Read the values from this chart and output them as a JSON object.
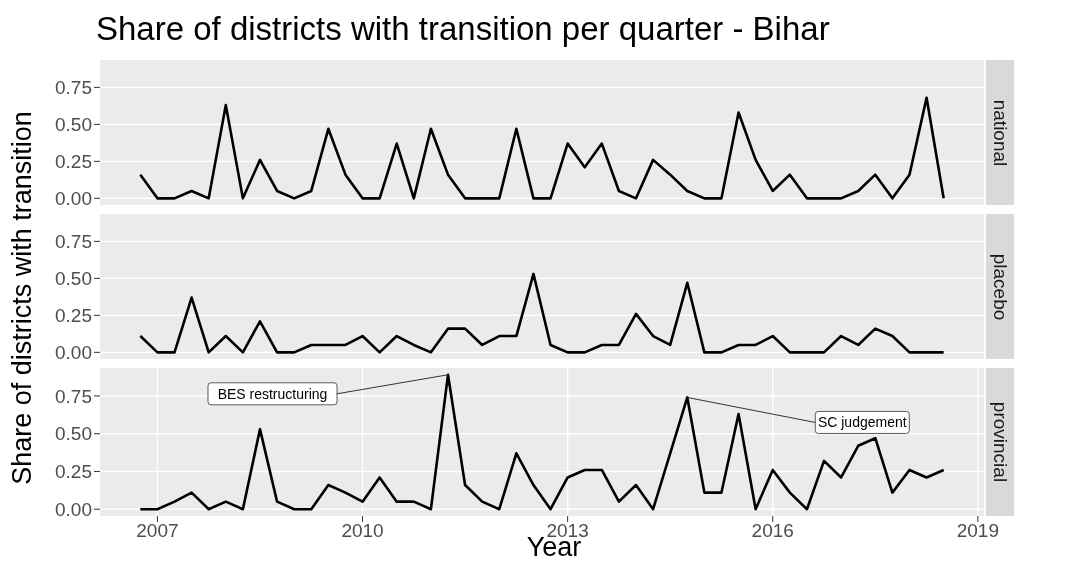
{
  "chart_data": [
    {
      "type": "line",
      "title": "Share of districts with transition per quarter - Bihar",
      "x": [
        2006.75,
        2007,
        2007.25,
        2007.5,
        2007.75,
        2008,
        2008.25,
        2008.5,
        2008.75,
        2009,
        2009.25,
        2009.5,
        2009.75,
        2010,
        2010.25,
        2010.5,
        2010.75,
        2011,
        2011.25,
        2011.5,
        2011.75,
        2012,
        2012.25,
        2012.5,
        2012.75,
        2013,
        2013.25,
        2013.5,
        2013.75,
        2014,
        2014.25,
        2014.5,
        2014.75,
        2015,
        2015.25,
        2015.5,
        2015.75,
        2016,
        2016.25,
        2016.5,
        2016.75,
        2017,
        2017.25,
        2017.5,
        2017.75,
        2018,
        2018.25,
        2018.5
      ],
      "series": [
        {
          "name": "national",
          "color": "#000000",
          "values": [
            0.16,
            0,
            0,
            0.05,
            0,
            0.63,
            0,
            0.26,
            0.05,
            0,
            0.05,
            0.47,
            0.16,
            0,
            0,
            0.37,
            0,
            0.47,
            0.16,
            0,
            0,
            0,
            0.47,
            0,
            0,
            0.37,
            0.21,
            0.37,
            0.05,
            0,
            0.26,
            0.16,
            0.05,
            0,
            0,
            0.58,
            0.26,
            0.05,
            0.16,
            0,
            0,
            0,
            0.05,
            0.16,
            0,
            0.16,
            0.68,
            0
          ]
        }
      ],
      "xlim": [
        2006.16,
        2019.09
      ],
      "xticks": [
        2007,
        2010,
        2013,
        2016,
        2019
      ],
      "ylim": [
        -0.045,
        0.935
      ],
      "yticks": [
        {
          "value": 0,
          "label": "0.00"
        },
        {
          "value": 0.25,
          "label": "0.25"
        },
        {
          "value": 0.5,
          "label": "0.50"
        },
        {
          "value": 0.75,
          "label": "0.75"
        }
      ],
      "grid": true,
      "tick_labels": "y"
    },
    {
      "type": "line",
      "ylabel": "Share of districts with transition",
      "x": [
        2006.75,
        2007,
        2007.25,
        2007.5,
        2007.75,
        2008,
        2008.25,
        2008.5,
        2008.75,
        2009,
        2009.25,
        2009.5,
        2009.75,
        2010,
        2010.25,
        2010.5,
        2010.75,
        2011,
        2011.25,
        2011.5,
        2011.75,
        2012,
        2012.25,
        2012.5,
        2012.75,
        2013,
        2013.25,
        2013.5,
        2013.75,
        2014,
        2014.25,
        2014.5,
        2014.75,
        2015,
        2015.25,
        2015.5,
        2015.75,
        2016,
        2016.25,
        2016.5,
        2016.75,
        2017,
        2017.25,
        2017.5,
        2017.75,
        2018,
        2018.25,
        2018.5
      ],
      "series": [
        {
          "name": "placebo",
          "color": "#000000",
          "values": [
            0.11,
            0,
            0,
            0.37,
            0,
            0.11,
            0,
            0.21,
            0,
            0,
            0.05,
            0.05,
            0.05,
            0.11,
            0,
            0.11,
            0.05,
            0,
            0.16,
            0.16,
            0.05,
            0.11,
            0.11,
            0.53,
            0.05,
            0,
            0,
            0.05,
            0.05,
            0.26,
            0.11,
            0.05,
            0.47,
            0,
            0,
            0.05,
            0.05,
            0.11,
            0,
            0,
            0,
            0.11,
            0.05,
            0.16,
            0.11,
            0,
            0,
            0
          ]
        }
      ],
      "xlim": [
        2006.16,
        2019.09
      ],
      "xticks": [
        2007,
        2010,
        2013,
        2016,
        2019
      ],
      "ylim": [
        -0.045,
        0.935
      ],
      "yticks": [
        {
          "value": 0,
          "label": "0.00"
        },
        {
          "value": 0.25,
          "label": "0.25"
        },
        {
          "value": 0.5,
          "label": "0.50"
        },
        {
          "value": 0.75,
          "label": "0.75"
        }
      ],
      "grid": true,
      "tick_labels": "y"
    },
    {
      "type": "line",
      "xlabel": "Year",
      "x": [
        2006.75,
        2007,
        2007.25,
        2007.5,
        2007.75,
        2008,
        2008.25,
        2008.5,
        2008.75,
        2009,
        2009.25,
        2009.5,
        2009.75,
        2010,
        2010.25,
        2010.5,
        2010.75,
        2011,
        2011.25,
        2011.5,
        2011.75,
        2012,
        2012.25,
        2012.5,
        2012.75,
        2013,
        2013.25,
        2013.5,
        2013.75,
        2014,
        2014.25,
        2014.5,
        2014.75,
        2015,
        2015.25,
        2015.5,
        2015.75,
        2016,
        2016.25,
        2016.5,
        2016.75,
        2017,
        2017.25,
        2017.5,
        2017.75,
        2018,
        2018.25,
        2018.5
      ],
      "series": [
        {
          "name": "provincial",
          "color": "#000000",
          "values": [
            0,
            0,
            0.05,
            0.11,
            0,
            0.05,
            0,
            0.53,
            0.05,
            0,
            0,
            0.16,
            0.11,
            0.05,
            0.21,
            0.05,
            0.05,
            0,
            0.89,
            0.16,
            0.05,
            0,
            0.37,
            0.16,
            0,
            0.21,
            0.26,
            0.26,
            0.05,
            0.16,
            0,
            0.37,
            0.74,
            0.11,
            0.11,
            0.63,
            0,
            0.26,
            0.11,
            0,
            0.32,
            0.21,
            0.42,
            0.47,
            0.11,
            0.26,
            0.21,
            0.26
          ]
        }
      ],
      "xlim": [
        2006.16,
        2019.09
      ],
      "xticks": [
        2007,
        2010,
        2013,
        2016,
        2019
      ],
      "ylim": [
        -0.045,
        0.935
      ],
      "yticks": [
        {
          "value": 0,
          "label": "0.00"
        },
        {
          "value": 0.25,
          "label": "0.25"
        },
        {
          "value": 0.5,
          "label": "0.50"
        },
        {
          "value": 0.75,
          "label": "0.75"
        }
      ],
      "grid": true,
      "annotations": [
        {
          "text": "BES restructuring",
          "x": 2011.25,
          "y": 0.89
        },
        {
          "text": "SC judgement",
          "x": 2014.75,
          "y": 0.74
        }
      ]
    }
  ]
}
